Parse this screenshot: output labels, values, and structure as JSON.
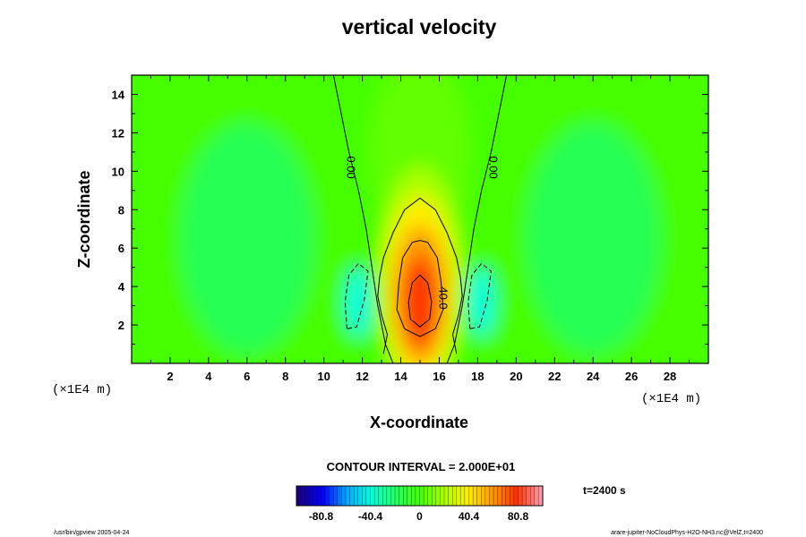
{
  "chart_data": {
    "type": "heatmap",
    "title": "vertical velocity",
    "xlabel": "X-coordinate",
    "ylabel": "Z-coordinate",
    "x_unit": "(×1E4 m)",
    "y_unit": "(×1E4 m)",
    "xlim": [
      0,
      30
    ],
    "ylim": [
      0,
      15
    ],
    "x_ticks": [
      2,
      4,
      6,
      8,
      10,
      12,
      14,
      16,
      18,
      20,
      22,
      24,
      26,
      28
    ],
    "y_ticks": [
      2,
      4,
      6,
      8,
      10,
      12,
      14
    ],
    "grid": false,
    "field": {
      "updraft": {
        "center": [
          15,
          3.2
        ],
        "peak": 80,
        "sx": 1.4,
        "sz": 3.2
      },
      "downdrafts": [
        {
          "center": [
            11.8,
            3.2
          ],
          "peak": -30,
          "sx": 0.7,
          "sz": 1.8
        },
        {
          "center": [
            18.2,
            3.2
          ],
          "peak": -30,
          "sx": 0.7,
          "sz": 1.8
        }
      ],
      "value_range": [
        -80.8,
        80.8
      ]
    },
    "contour_interval_label": "CONTOUR INTERVAL = 2.000E+01",
    "contour_levels": [
      -40,
      -20,
      0,
      20,
      40,
      60
    ],
    "contour_labels": [
      {
        "text": "0.00",
        "x": 11.2,
        "y": 10.2
      },
      {
        "text": "0.00",
        "x": 18.6,
        "y": 10.2
      },
      {
        "text": "40.0",
        "x": 16.0,
        "y": 3.4
      }
    ],
    "colorbar": {
      "ticks": [
        "-80.8",
        "-40.4",
        "0",
        "40.4",
        "80.8"
      ],
      "tick_values": [
        -80.8,
        -40.4,
        0,
        40.4,
        80.8
      ],
      "min": -101,
      "max": 101,
      "colors": [
        "#1a0080",
        "#0000ff",
        "#00aaff",
        "#00ffdd",
        "#22ff66",
        "#44ff00",
        "#aaff00",
        "#ffee00",
        "#ff9900",
        "#ff3300",
        "#ff99aa"
      ]
    },
    "time_label": "t=2400 s"
  },
  "footer": {
    "left": "/usr/bin/gpview 2005-04-24",
    "right": "arare-jupiter-NoCloudPhys-H2O-NH3.nc@VelZ,t=2400"
  }
}
